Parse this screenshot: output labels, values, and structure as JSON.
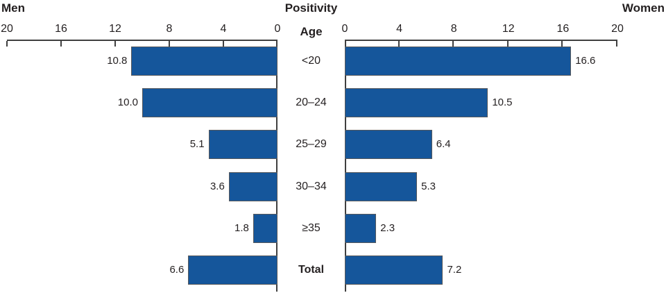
{
  "header": {
    "left_title": "Men",
    "center_title": "Positivity",
    "right_title": "Women",
    "age_label": "Age"
  },
  "axes": {
    "left_tick_labels": [
      "20",
      "16",
      "12",
      "8",
      "4",
      "0"
    ],
    "right_tick_labels": [
      "0",
      "4",
      "8",
      "12",
      "16",
      "20"
    ]
  },
  "colors": {
    "bar_fill": "#15569B",
    "bar_border": "#58595B",
    "axis_line": "#3F3F3F",
    "text": "#231F20"
  },
  "chart_data": {
    "type": "bar",
    "orientation": "horizontal",
    "layout": "bidirectional-pyramid",
    "title": "Positivity",
    "center_axis_label": "Age",
    "categories": [
      "<20",
      "20–24",
      "25–29",
      "30–34",
      "≥35",
      "Total"
    ],
    "series": [
      {
        "name": "Men",
        "side": "left",
        "values": [
          10.8,
          10.0,
          5.1,
          3.6,
          1.8,
          6.6
        ]
      },
      {
        "name": "Women",
        "side": "right",
        "values": [
          16.6,
          10.5,
          6.4,
          5.3,
          2.3,
          7.2
        ]
      }
    ],
    "axis_range": [
      0,
      20
    ],
    "tick_interval": 4,
    "value_label_decimals": 1,
    "emphasized_category": "Total",
    "grid": false,
    "legend": false
  }
}
